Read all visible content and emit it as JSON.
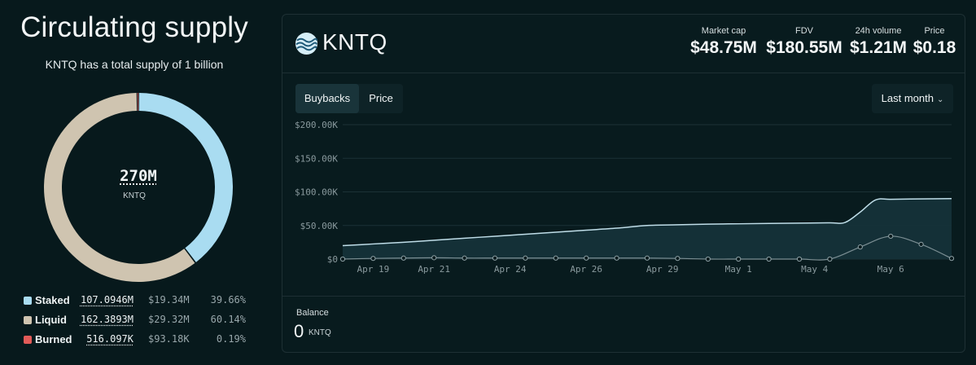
{
  "supply": {
    "title": "Circulating supply",
    "subtitle": "KNTQ has a total supply of 1 billion",
    "center_value": "270M",
    "center_unit": "KNTQ",
    "segments": [
      {
        "name": "Staked",
        "amount": "107.0946M",
        "usd": "$19.34M",
        "pct": "39.66%",
        "share": 39.66,
        "color": "#a9dcf1"
      },
      {
        "name": "Liquid",
        "amount": "162.3893M",
        "usd": "$29.32M",
        "pct": "60.14%",
        "share": 60.14,
        "color": "#cfc4b0"
      },
      {
        "name": "Burned",
        "amount": "516.097K",
        "usd": "$93.18K",
        "pct": "0.19%",
        "share": 0.19,
        "color": "#e25b58"
      }
    ]
  },
  "token": {
    "ticker": "KNTQ",
    "logo_icon": "kntq-wave-logo-icon",
    "stats": [
      {
        "label": "Market cap",
        "value": "$48.75M"
      },
      {
        "label": "FDV",
        "value": "$180.55M"
      },
      {
        "label": "24h volume",
        "value": "$1.21M"
      },
      {
        "label": "Price",
        "value": "$0.18"
      }
    ]
  },
  "tabs": [
    {
      "label": "Buybacks",
      "active": true
    },
    {
      "label": "Price",
      "active": false
    }
  ],
  "range": {
    "label": "Last month",
    "icon": "chevron-down-icon"
  },
  "chart_data": {
    "type": "area",
    "title": "",
    "xlabel": "",
    "ylabel": "",
    "ylim": [
      0,
      200000
    ],
    "y_ticks": [
      "$0",
      "$50.00K",
      "$100.00K",
      "$150.00K",
      "$200.00K"
    ],
    "y_tick_values": [
      0,
      50000,
      100000,
      150000,
      200000
    ],
    "x_ticks": [
      "Apr 19",
      "Apr 21",
      "Apr 24",
      "Apr 26",
      "Apr 29",
      "May 1",
      "May 4",
      "May 6"
    ],
    "x_tick_values": [
      1.0,
      3.0,
      5.5,
      8.0,
      10.5,
      13.0,
      15.5,
      18.0
    ],
    "grid": true,
    "series": [
      {
        "x": [
          0,
          1,
          2,
          3,
          4,
          5,
          6,
          7,
          8,
          9,
          10,
          11,
          12,
          13,
          14,
          15,
          16,
          16.5,
          17,
          17.5,
          18,
          19,
          20
        ],
        "values": [
          20000,
          22500,
          25000,
          28000,
          31000,
          34000,
          37000,
          40000,
          43000,
          46000,
          50000,
          51000,
          52000,
          52500,
          53000,
          53500,
          54000,
          54500,
          70000,
          88000,
          89000,
          89500,
          90000
        ],
        "color": "#bfdde8"
      },
      {
        "x": [
          0,
          1,
          2,
          3,
          4,
          5,
          6,
          7,
          8,
          9,
          10,
          11,
          12,
          13,
          14,
          15,
          16,
          17,
          18,
          19,
          20
        ],
        "values": [
          0,
          1000,
          1500,
          2000,
          1500,
          1500,
          1500,
          1500,
          1500,
          1500,
          1500,
          1000,
          0,
          0,
          0,
          0,
          0,
          18000,
          34000,
          22000,
          1000
        ],
        "color": "#7b8e93"
      }
    ]
  },
  "balance": {
    "label": "Balance",
    "value": "0",
    "unit": "KNTQ"
  }
}
